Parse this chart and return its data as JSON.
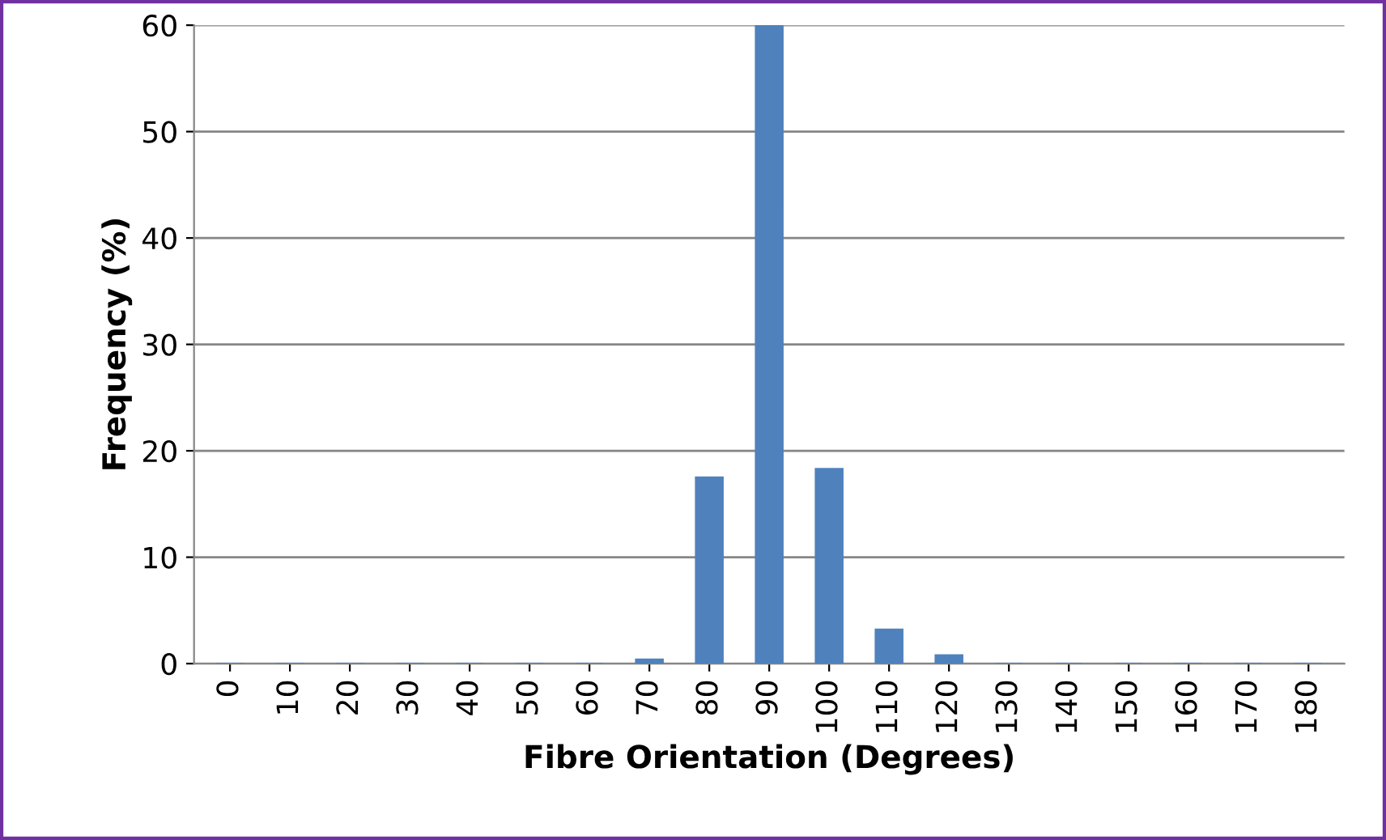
{
  "chart_data": {
    "type": "bar",
    "xlabel": "Fibre Orientation (Degrees)",
    "ylabel": "Frequency (%)",
    "categories": [
      "0",
      "10",
      "20",
      "30",
      "40",
      "50",
      "60",
      "70",
      "80",
      "90",
      "100",
      "110",
      "120",
      "130",
      "140",
      "150",
      "160",
      "170",
      "180"
    ],
    "values": [
      0,
      0,
      0,
      0,
      0,
      0,
      0,
      0.4,
      17.5,
      60,
      18.3,
      3.2,
      0.8,
      0,
      0,
      0,
      0,
      0,
      0
    ],
    "color": "#4f81bd",
    "ylim": [
      0,
      60
    ],
    "yticks": [
      0,
      10,
      20,
      30,
      40,
      50,
      60
    ],
    "grid": "y",
    "legend": false
  }
}
